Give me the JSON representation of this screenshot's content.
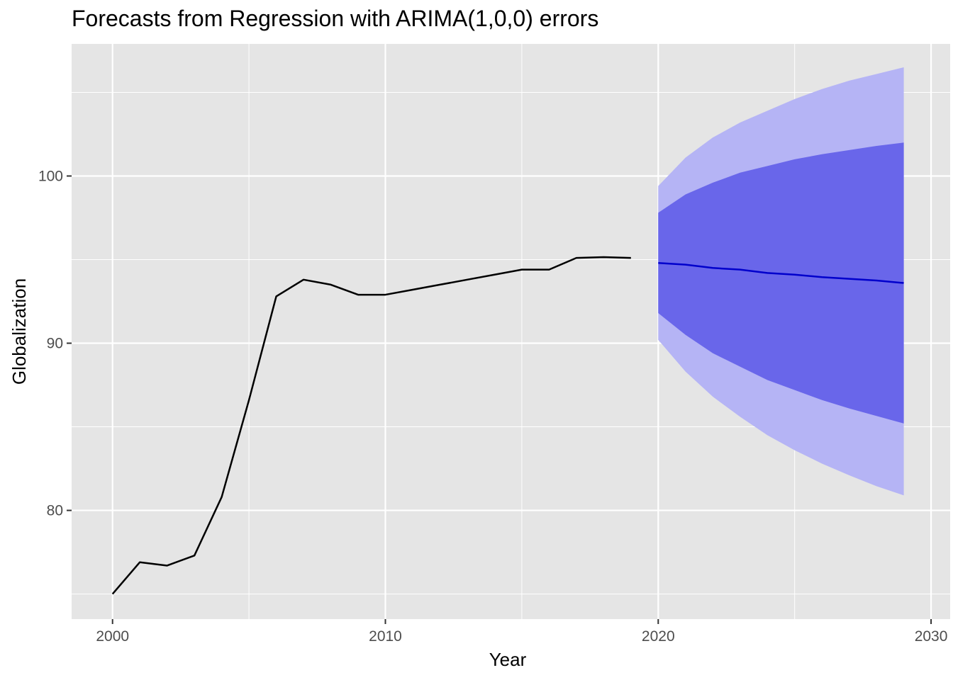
{
  "chart_data": {
    "type": "line",
    "title": "Forecasts from Regression with ARIMA(1,0,0) errors",
    "xlabel": "Year",
    "ylabel": "Globalization",
    "xlim": [
      1998.5,
      2030.7
    ],
    "ylim": [
      73.5,
      107.9
    ],
    "x_ticks": [
      {
        "value": 2000,
        "label": "2000"
      },
      {
        "value": 2010,
        "label": "2010"
      },
      {
        "value": 2020,
        "label": "2020"
      },
      {
        "value": 2030,
        "label": "2030"
      }
    ],
    "y_ticks": [
      {
        "value": 80,
        "label": "80"
      },
      {
        "value": 90,
        "label": "90"
      },
      {
        "value": 100,
        "label": "100"
      }
    ],
    "grid": true,
    "legend": "none",
    "colors": {
      "panel_bg": "#e5e5e5",
      "grid": "#ffffff",
      "observed_line": "#000000",
      "forecast_line": "#0000cc",
      "pi80": "#6966ea",
      "pi95": "#b5b4f5"
    },
    "observed": {
      "x": [
        2000,
        2001,
        2002,
        2003,
        2004,
        2005,
        2006,
        2007,
        2008,
        2009,
        2010,
        2011,
        2012,
        2013,
        2014,
        2015,
        2016,
        2017,
        2018,
        2019
      ],
      "y": [
        75.0,
        76.9,
        76.7,
        77.3,
        80.8,
        86.6,
        92.8,
        93.8,
        93.5,
        92.9,
        92.9,
        93.2,
        93.5,
        93.8,
        94.1,
        94.4,
        94.4,
        95.1,
        95.15,
        95.1
      ]
    },
    "forecast": {
      "x": [
        2020,
        2021,
        2022,
        2023,
        2024,
        2025,
        2026,
        2027,
        2028,
        2029
      ],
      "mean": [
        94.8,
        94.7,
        94.5,
        94.4,
        94.2,
        94.1,
        93.95,
        93.85,
        93.75,
        93.6
      ],
      "lo80": [
        91.8,
        90.5,
        89.4,
        88.6,
        87.8,
        87.2,
        86.6,
        86.1,
        85.65,
        85.2
      ],
      "hi80": [
        97.8,
        98.9,
        99.6,
        100.2,
        100.6,
        101.0,
        101.3,
        101.55,
        101.8,
        102.0
      ],
      "lo95": [
        90.2,
        88.3,
        86.8,
        85.6,
        84.5,
        83.6,
        82.8,
        82.1,
        81.45,
        80.9
      ],
      "hi95": [
        99.4,
        101.1,
        102.3,
        103.2,
        103.9,
        104.6,
        105.2,
        105.7,
        106.1,
        106.5
      ]
    }
  }
}
